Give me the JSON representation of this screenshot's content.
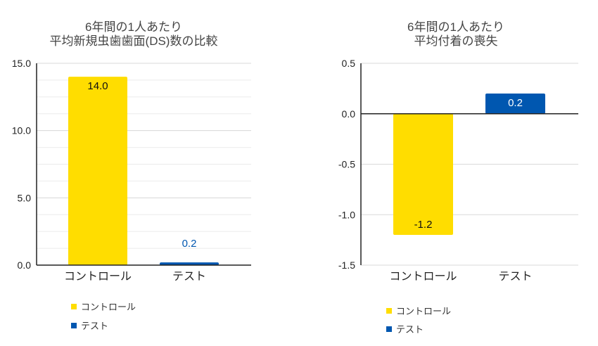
{
  "colors": {
    "control": "#FFDD00",
    "test": "#0057B0",
    "grid": "#d9d9d9",
    "axis": "#222222",
    "title": "#444444"
  },
  "chart_data": [
    {
      "type": "bar",
      "title": [
        "6年間の1人あたり",
        "平均新規虫歯歯面(DS)数の比較"
      ],
      "categories": [
        "コントロール",
        "テスト"
      ],
      "values": [
        14.0,
        0.2
      ],
      "data_labels": [
        "14.0",
        "0.2"
      ],
      "ylim": [
        0,
        15
      ],
      "yticks": [
        0,
        5,
        10,
        15
      ],
      "ytick_labels": [
        "0.0",
        "5.0",
        "10.0",
        "15.0"
      ],
      "minor_grid_step": 1.25,
      "grid": true,
      "legend": {
        "position": "bottom-left",
        "entries": [
          "コントロール",
          "テスト"
        ]
      }
    },
    {
      "type": "bar",
      "title": [
        "6年間の1人あたり",
        "平均付着の喪失"
      ],
      "categories": [
        "コントロール",
        "テスト"
      ],
      "values": [
        -1.2,
        0.2
      ],
      "data_labels": [
        "-1.2",
        "0.2"
      ],
      "ylim": [
        -1.5,
        0.5
      ],
      "yticks": [
        -1.5,
        -1.0,
        -0.5,
        0.0,
        0.5
      ],
      "ytick_labels": [
        "-1.5",
        "-1.0",
        "-0.5",
        "0.0",
        "0.5"
      ],
      "grid": true,
      "legend": {
        "position": "bottom-left",
        "entries": [
          "コントロール",
          "テスト"
        ]
      }
    }
  ]
}
